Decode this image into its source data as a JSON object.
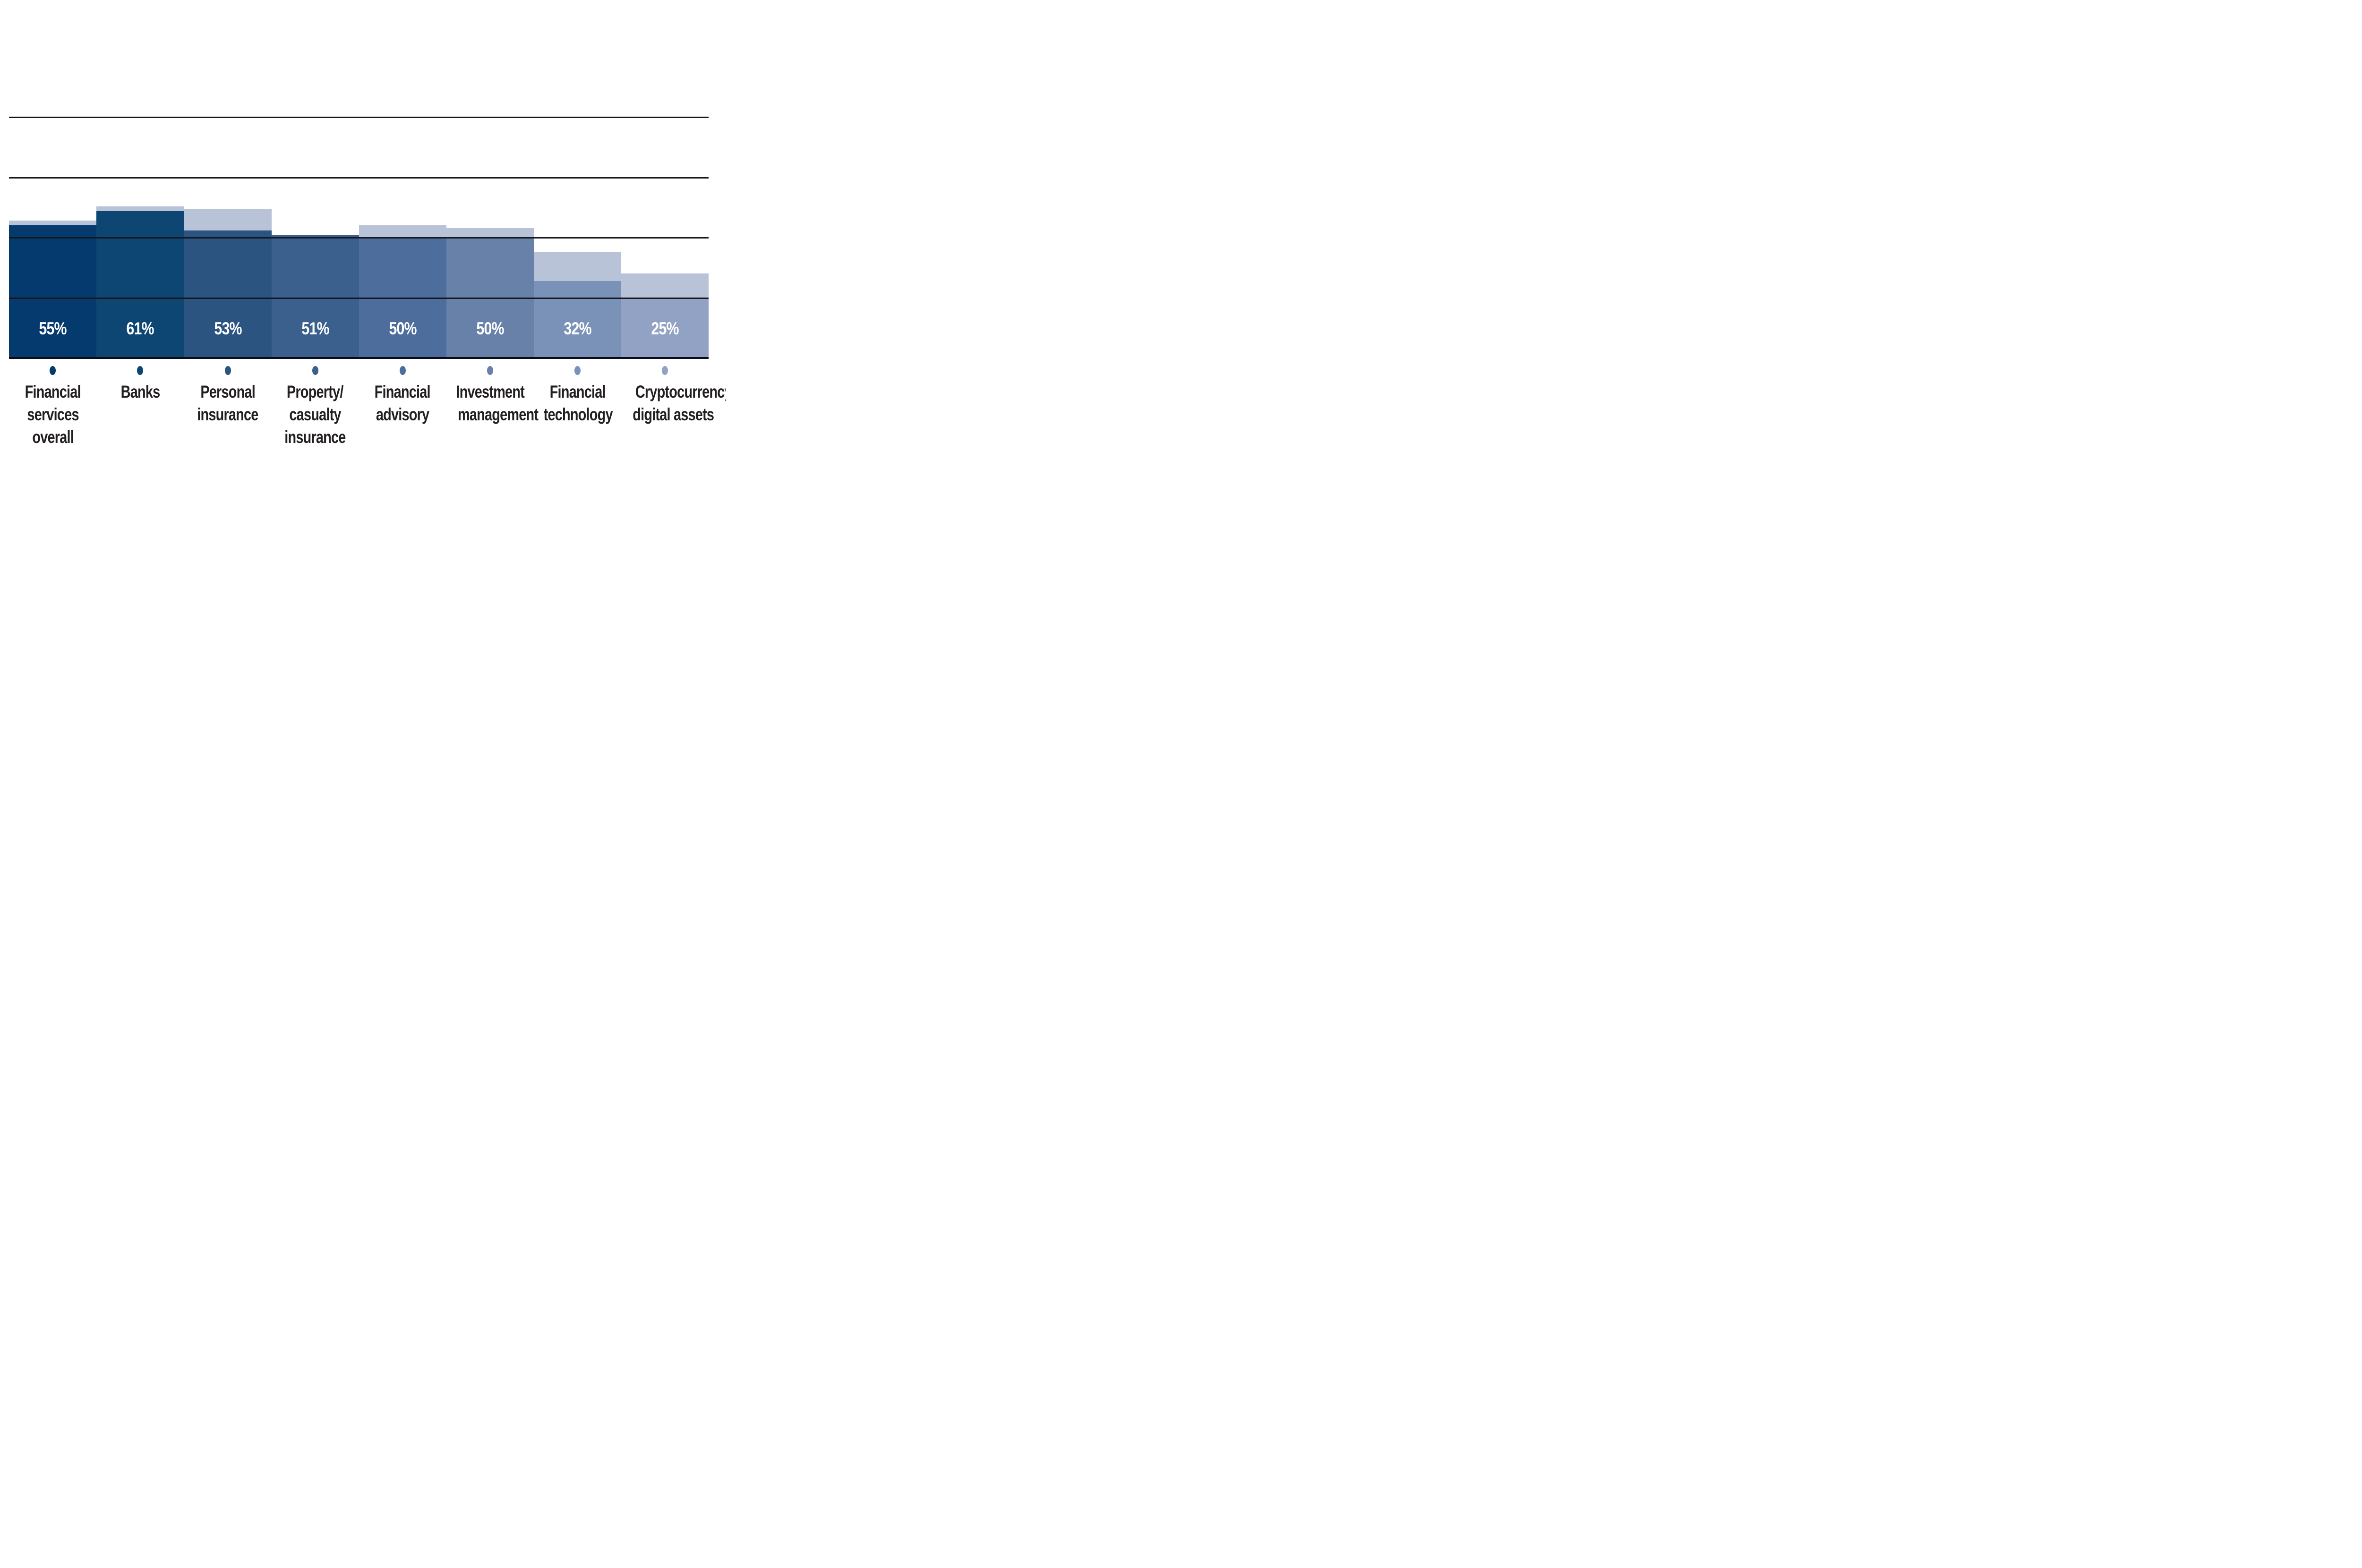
{
  "chart_data": {
    "type": "bar",
    "title": "",
    "categories": [
      "Financial services overall",
      "Banks",
      "Personal insurance",
      "Property/casualty insurance",
      "Financial advisory",
      "Investment management",
      "Financial technology",
      "Cryptocurrency/digital assets"
    ],
    "category_label_lines": [
      [
        "Financial",
        "services",
        "overall"
      ],
      [
        "Banks"
      ],
      [
        "Personal",
        "insurance"
      ],
      [
        "Property/",
        "casualty",
        "insurance"
      ],
      [
        "Financial",
        "advisory"
      ],
      [
        "Investment",
        "management"
      ],
      [
        "Financial",
        "technology"
      ],
      [
        "Cryptocurrency/",
        "digital assets"
      ]
    ],
    "series": [
      {
        "name": "light_background_bars",
        "values": [
          57,
          63,
          62,
          51,
          55,
          54,
          44,
          35
        ],
        "color": "#b9c3d8"
      },
      {
        "name": "dark_foreground_bars",
        "values": [
          55,
          61,
          53,
          51,
          50,
          50,
          32,
          25
        ],
        "colors": [
          "#053a6e",
          "#0d4573",
          "#2b5480",
          "#3b608d",
          "#4d6d9d",
          "#6781a9",
          "#7b92b8",
          "#92a2c4"
        ]
      }
    ],
    "value_labels": [
      "55%",
      "61%",
      "53%",
      "51%",
      "50%",
      "50%",
      "32%",
      "25%"
    ],
    "xlabel": "",
    "ylabel": "",
    "ylim": [
      0,
      100
    ],
    "gridline_values": [
      0,
      25,
      50,
      75,
      100
    ],
    "grid": "on",
    "legend": "none"
  },
  "colors": {
    "background": "#ffffff",
    "gridline": "#15171c",
    "baseline": "#0a0e18",
    "value_text": "#ffffff",
    "category_text": "#231f20"
  }
}
